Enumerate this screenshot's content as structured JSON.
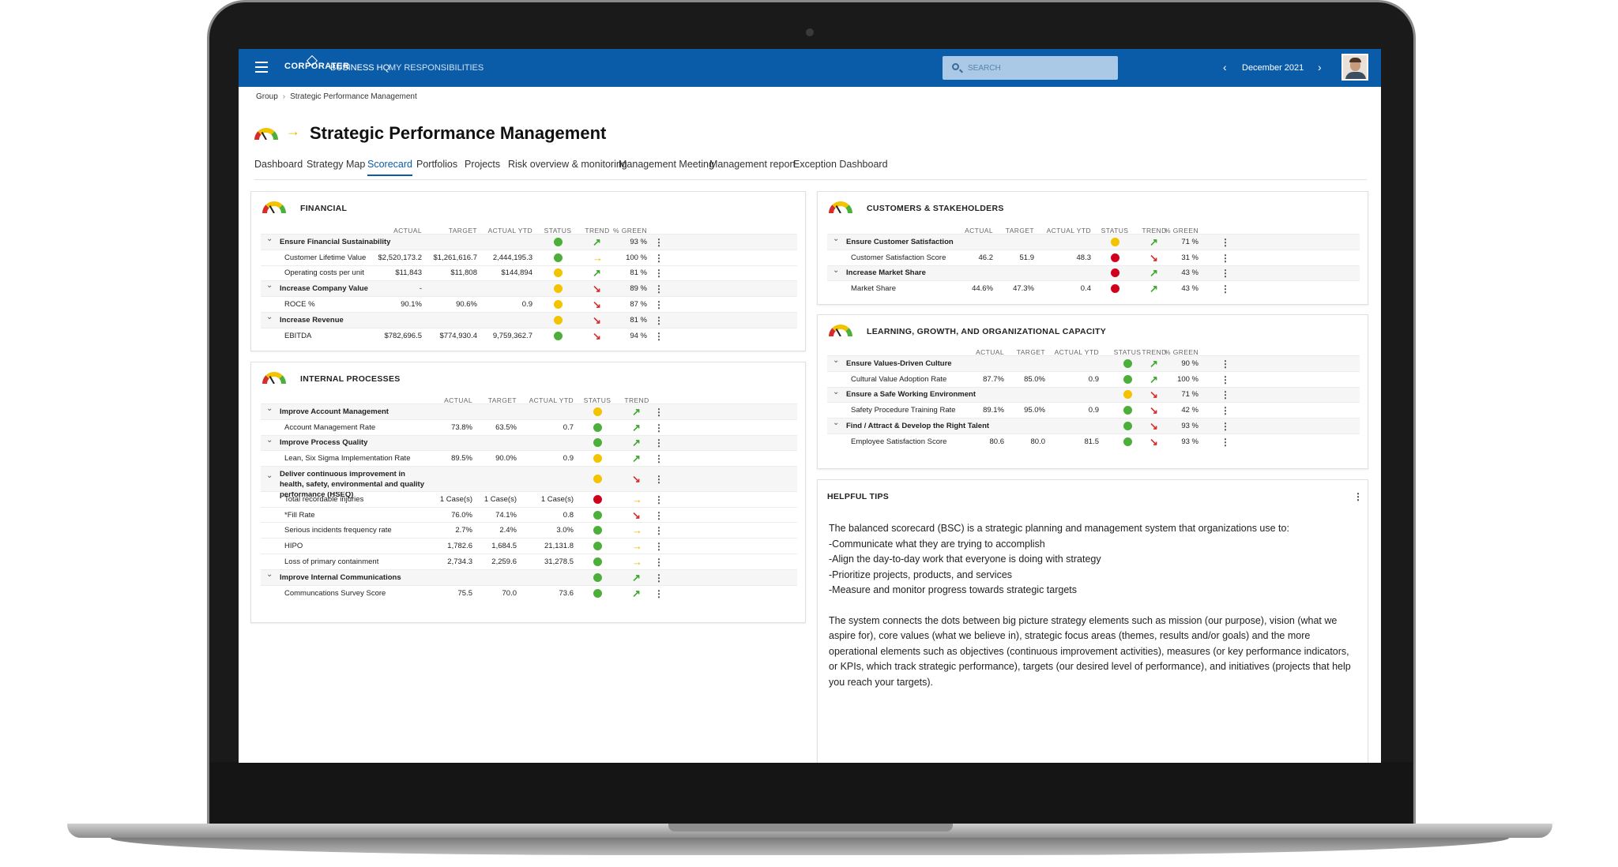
{
  "colors": {
    "brand": "#0a5ca8",
    "green": "#4caf3a",
    "yellow": "#f3c300",
    "red": "#d0021b",
    "arrow_up_green": "#3ea52e",
    "arrow_right_yellow": "#f0b400",
    "arrow_down_red": "#d62c2c"
  },
  "topbar": {
    "logo": "CORPORATER",
    "nav": [
      "BUSINESS HQ",
      "MY RESPONSIBILITIES"
    ],
    "search_placeholder": "SEARCH",
    "period": "December 2021"
  },
  "breadcrumb": [
    "Group",
    "Strategic Performance Management"
  ],
  "page_title": "Strategic Performance Management",
  "tabs": [
    "Dashboard",
    "Strategy Map",
    "Scorecard",
    "Portfolios",
    "Projects",
    "Risk overview & monitoring",
    "Management Meeting",
    "Management report",
    "Exception Dashboard"
  ],
  "active_tab": "Scorecard",
  "columns": {
    "actual": "ACTUAL",
    "target": "TARGET",
    "actual_ytd": "ACTUAL YTD",
    "status": "STATUS",
    "trend": "TREND",
    "pct_green": "% GREEN"
  },
  "financial": {
    "title": "FINANCIAL",
    "rows": [
      {
        "type": "group",
        "name": "Ensure Financial Sustainability",
        "actual": "",
        "target": "",
        "ytd": "",
        "status": "green",
        "trend": "up",
        "pct": "93 %"
      },
      {
        "type": "item",
        "name": "Customer Lifetime Value",
        "actual": "$2,520,173.2",
        "target": "$1,261,616.7",
        "ytd": "2,444,195.3",
        "status": "green",
        "trend": "right",
        "pct": "100 %"
      },
      {
        "type": "item",
        "name": "Operating costs per unit",
        "actual": "$11,843",
        "target": "$11,808",
        "ytd": "$144,894",
        "status": "yellow",
        "trend": "up",
        "pct": "81 %"
      },
      {
        "type": "group",
        "name": "Increase Company Value",
        "actual": "-",
        "target": "",
        "ytd": "",
        "status": "yellow",
        "trend": "down",
        "pct": "89 %"
      },
      {
        "type": "item",
        "name": "ROCE %",
        "actual": "90.1%",
        "target": "90.6%",
        "ytd": "0.9",
        "status": "yellow",
        "trend": "down",
        "pct": "87 %"
      },
      {
        "type": "group",
        "name": "Increase Revenue",
        "actual": "",
        "target": "",
        "ytd": "",
        "status": "yellow",
        "trend": "down",
        "pct": "81 %"
      },
      {
        "type": "item",
        "name": "EBITDA",
        "actual": "$782,696.5",
        "target": "$774,930.4",
        "ytd": "9,759,362.7",
        "status": "green",
        "trend": "down",
        "pct": "94 %"
      }
    ]
  },
  "internal": {
    "title": "INTERNAL PROCESSES",
    "rows": [
      {
        "type": "group",
        "name": "Improve Account Management",
        "actual": "",
        "target": "",
        "ytd": "",
        "status": "yellow",
        "trend": "up"
      },
      {
        "type": "item",
        "name": "Account Management Rate",
        "actual": "73.8%",
        "target": "63.5%",
        "ytd": "0.7",
        "status": "green",
        "trend": "up"
      },
      {
        "type": "group",
        "name": "Improve Process Quality",
        "actual": "",
        "target": "",
        "ytd": "",
        "status": "green",
        "trend": "up"
      },
      {
        "type": "item",
        "name": "Lean, Six Sigma Implementation Rate",
        "actual": "89.5%",
        "target": "90.0%",
        "ytd": "0.9",
        "status": "yellow",
        "trend": "up"
      },
      {
        "type": "group2",
        "name": "Deliver continuous improvement in health, safety, environmental and quality performance (HSEQ)",
        "actual": "",
        "target": "",
        "ytd": "",
        "status": "yellow",
        "trend": "down"
      },
      {
        "type": "item",
        "name": "Total recordable injuries",
        "actual": "1 Case(s)",
        "target": "1 Case(s)",
        "ytd": "1 Case(s)",
        "status": "red",
        "trend": "right"
      },
      {
        "type": "item",
        "name": "*Fill Rate",
        "actual": "76.0%",
        "target": "74.1%",
        "ytd": "0.8",
        "status": "green",
        "trend": "down"
      },
      {
        "type": "item",
        "name": "Serious incidents frequency rate",
        "actual": "2.7%",
        "target": "2.4%",
        "ytd": "3.0%",
        "status": "green",
        "trend": "right"
      },
      {
        "type": "item",
        "name": "HIPO",
        "actual": "1,782.6",
        "target": "1,684.5",
        "ytd": "21,131.8",
        "status": "green",
        "trend": "right"
      },
      {
        "type": "item",
        "name": "Loss of primary containment",
        "actual": "2,734.3",
        "target": "2,259.6",
        "ytd": "31,278.5",
        "status": "green",
        "trend": "right"
      },
      {
        "type": "group",
        "name": "Improve Internal Communications",
        "actual": "",
        "target": "",
        "ytd": "",
        "status": "green",
        "trend": "up"
      },
      {
        "type": "item",
        "name": "Communcations Survey Score",
        "actual": "75.5",
        "target": "70.0",
        "ytd": "73.6",
        "status": "green",
        "trend": "up"
      }
    ]
  },
  "customers": {
    "title": "CUSTOMERS & STAKEHOLDERS",
    "rows": [
      {
        "type": "group",
        "name": "Ensure Customer Satisfaction",
        "actual": "",
        "target": "",
        "ytd": "",
        "status": "yellow",
        "trend": "up",
        "pct": "71 %"
      },
      {
        "type": "item",
        "name": "Customer Satisfaction Score",
        "actual": "46.2",
        "target": "51.9",
        "ytd": "48.3",
        "status": "red",
        "trend": "down",
        "pct": "31 %"
      },
      {
        "type": "group",
        "name": "Increase Market Share",
        "actual": "",
        "target": "",
        "ytd": "",
        "status": "red",
        "trend": "up",
        "pct": "43 %"
      },
      {
        "type": "item",
        "name": "Market Share",
        "actual": "44.6%",
        "target": "47.3%",
        "ytd": "0.4",
        "status": "red",
        "trend": "up",
        "pct": "43 %"
      }
    ]
  },
  "learning": {
    "title": "LEARNING, GROWTH, AND ORGANIZATIONAL CAPACITY",
    "rows": [
      {
        "type": "group",
        "name": "Ensure Values-Driven Culture",
        "actual": "",
        "target": "",
        "ytd": "",
        "status": "green",
        "trend": "up",
        "pct": "90 %"
      },
      {
        "type": "item",
        "name": "Cultural Value Adoption Rate",
        "actual": "87.7%",
        "target": "85.0%",
        "ytd": "0.9",
        "status": "green",
        "trend": "up",
        "pct": "100 %"
      },
      {
        "type": "group",
        "name": "Ensure a Safe Working Environment",
        "actual": "",
        "target": "",
        "ytd": "",
        "status": "yellow",
        "trend": "down",
        "pct": "71 %"
      },
      {
        "type": "item",
        "name": "Safety Procedure Training Rate",
        "actual": "89.1%",
        "target": "95.0%",
        "ytd": "0.9",
        "status": "green",
        "trend": "down",
        "pct": "42 %"
      },
      {
        "type": "group",
        "name": "Find / Attract & Develop the Right Talent",
        "actual": "",
        "target": "",
        "ytd": "",
        "status": "green",
        "trend": "down",
        "pct": "93 %"
      },
      {
        "type": "item",
        "name": "Employee Satisfaction Score",
        "actual": "80.6",
        "target": "80.0",
        "ytd": "81.5",
        "status": "green",
        "trend": "down",
        "pct": "93 %"
      }
    ]
  },
  "tips": {
    "title": "HELPFUL TIPS",
    "p1_intro": "The balanced scorecard (BSC) is a strategic planning and management system that organizations use to:",
    "p1_items": [
      "-Communicate what they are trying to accomplish",
      "-Align the day-to-day work that everyone is doing with strategy",
      "-Prioritize projects, products, and services",
      "-Measure and monitor progress towards strategic targets"
    ],
    "p2": "The system connects the dots between big picture strategy elements such as mission (our purpose), vision (what we aspire for), core values (what we believe in), strategic focus areas (themes, results and/or goals) and the more operational elements such as objectives (continuous improvement activities), measures (or key performance indicators, or KPIs, which track strategic performance), targets (our desired level of performance), and initiatives (projects that help you reach your targets)."
  }
}
